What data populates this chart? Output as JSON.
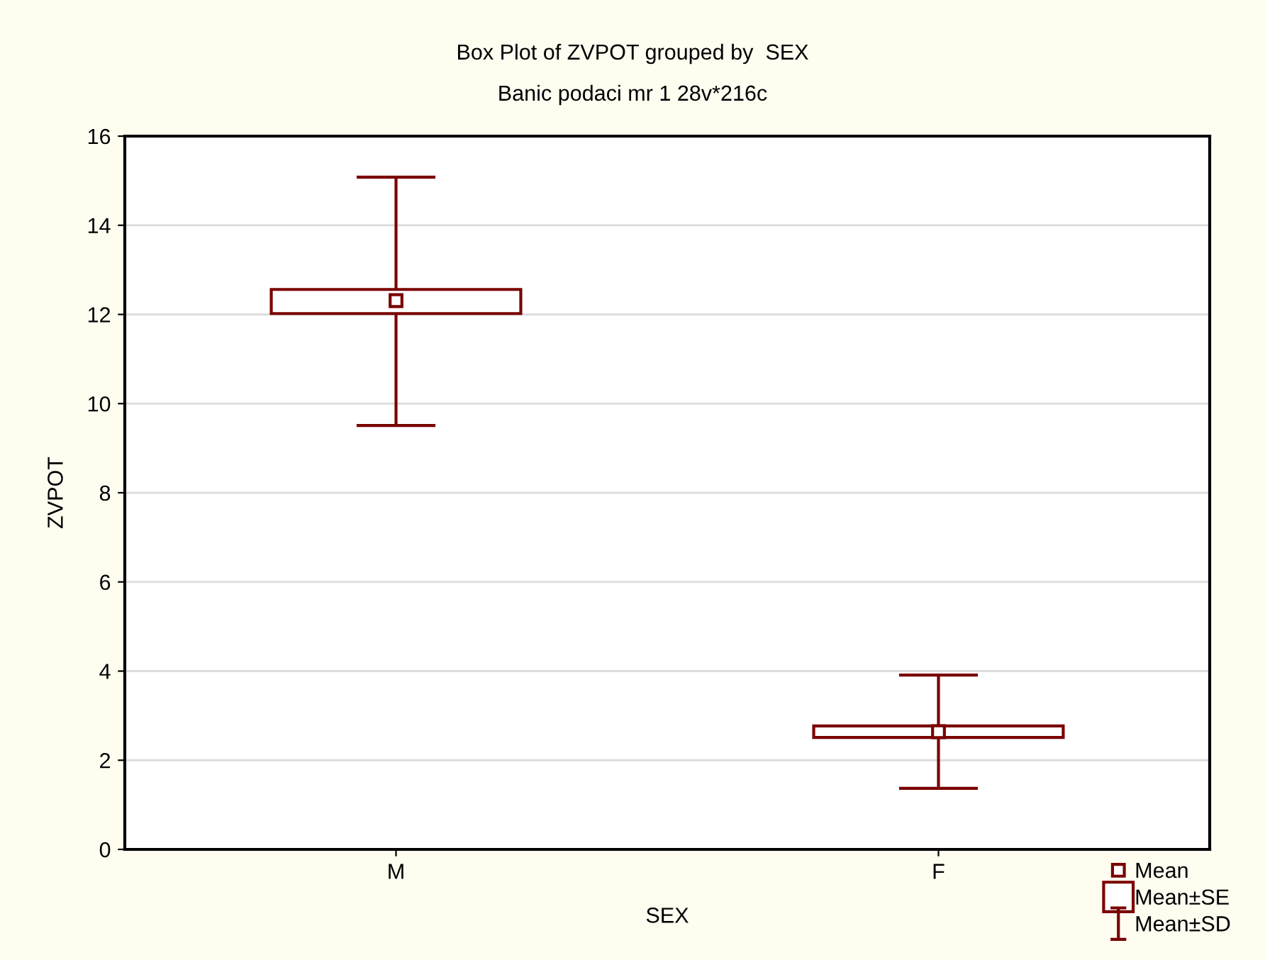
{
  "chart_data": {
    "type": "box",
    "title": "Box Plot of ZVPOT grouped by  SEX",
    "subtitle": "Banic podaci mr 1 28v*216c",
    "xlabel": "SEX",
    "ylabel": "ZVPOT",
    "categories": [
      "M",
      "F"
    ],
    "boxes": [
      {
        "low": 9.51,
        "q1": 12.02,
        "q3": 12.56,
        "high": 15.08,
        "mean": 12.31
      },
      {
        "low": 1.37,
        "q1": 2.51,
        "q3": 2.77,
        "high": 3.91,
        "mean": 2.64
      }
    ],
    "color": "#7a0000",
    "annotations": [
      "Mean",
      "Mean±SE",
      "Mean±SD"
    ],
    "ylim": [
      0,
      16
    ],
    "yticks": [
      0,
      2,
      4,
      6,
      8,
      10,
      12,
      14,
      16
    ],
    "grid": "y"
  }
}
